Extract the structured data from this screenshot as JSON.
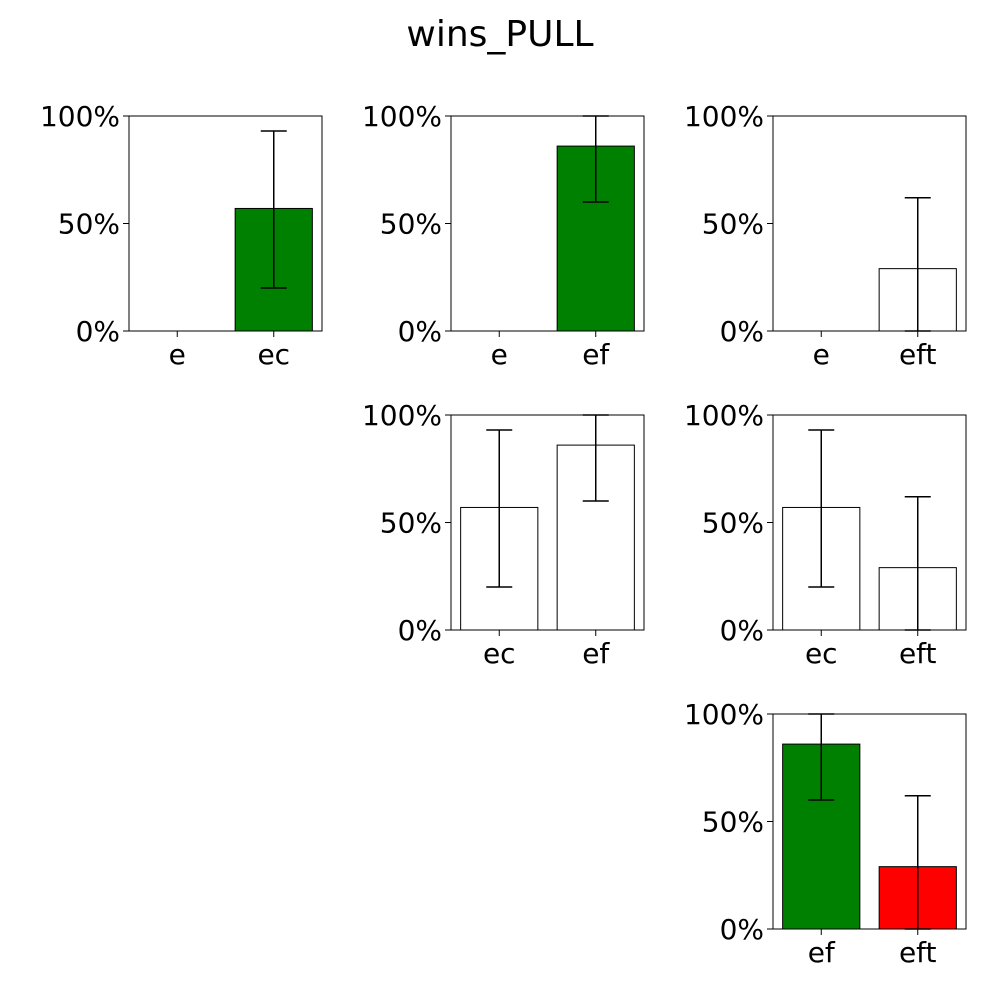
{
  "figure": {
    "title": "wins_PULL"
  },
  "chart_data": [
    {
      "type": "bar",
      "row": 0,
      "col": 0,
      "categories": [
        "e",
        "ec"
      ],
      "values": [
        0,
        57
      ],
      "err_low": [
        0,
        20
      ],
      "err_high": [
        0,
        93
      ],
      "colors": [
        "#ffffff",
        "#008000"
      ],
      "yticks": [
        "0%",
        "50%",
        "100%"
      ],
      "ylim": [
        0,
        100
      ]
    },
    {
      "type": "bar",
      "row": 0,
      "col": 1,
      "categories": [
        "e",
        "ef"
      ],
      "values": [
        0,
        86
      ],
      "err_low": [
        0,
        60
      ],
      "err_high": [
        0,
        100
      ],
      "colors": [
        "#ffffff",
        "#008000"
      ],
      "yticks": [
        "0%",
        "50%",
        "100%"
      ],
      "ylim": [
        0,
        100
      ]
    },
    {
      "type": "bar",
      "row": 0,
      "col": 2,
      "categories": [
        "e",
        "eft"
      ],
      "values": [
        0,
        29
      ],
      "err_low": [
        0,
        0
      ],
      "err_high": [
        0,
        62
      ],
      "colors": [
        "#ffffff",
        "#ffffff"
      ],
      "yticks": [
        "0%",
        "50%",
        "100%"
      ],
      "ylim": [
        0,
        100
      ]
    },
    {
      "type": "bar",
      "row": 1,
      "col": 1,
      "categories": [
        "ec",
        "ef"
      ],
      "values": [
        57,
        86
      ],
      "err_low": [
        20,
        60
      ],
      "err_high": [
        93,
        100
      ],
      "colors": [
        "#ffffff",
        "#ffffff"
      ],
      "yticks": [
        "0%",
        "50%",
        "100%"
      ],
      "ylim": [
        0,
        100
      ]
    },
    {
      "type": "bar",
      "row": 1,
      "col": 2,
      "categories": [
        "ec",
        "eft"
      ],
      "values": [
        57,
        29
      ],
      "err_low": [
        20,
        0
      ],
      "err_high": [
        93,
        62
      ],
      "colors": [
        "#ffffff",
        "#ffffff"
      ],
      "yticks": [
        "0%",
        "50%",
        "100%"
      ],
      "ylim": [
        0,
        100
      ]
    },
    {
      "type": "bar",
      "row": 2,
      "col": 2,
      "categories": [
        "ef",
        "eft"
      ],
      "values": [
        86,
        29
      ],
      "err_low": [
        60,
        0
      ],
      "err_high": [
        100,
        62
      ],
      "colors": [
        "#008000",
        "#ff0000"
      ],
      "yticks": [
        "0%",
        "50%",
        "100%"
      ],
      "ylim": [
        0,
        100
      ]
    }
  ]
}
